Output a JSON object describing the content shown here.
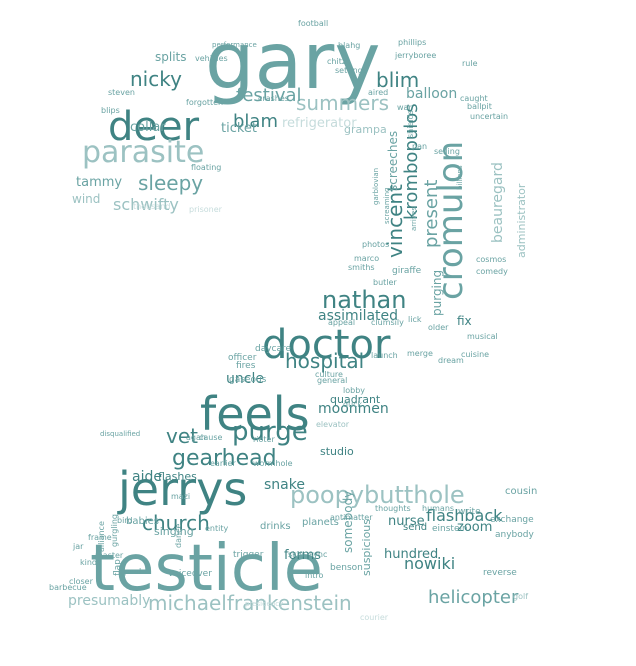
{
  "palette": {
    "dark": "#3f8383",
    "mid": "#6aa3a3",
    "light": "#9cc2c2",
    "faint": "#c6dcdc"
  },
  "words": [
    {
      "text": "gary",
      "color": "mid"
    },
    {
      "text": "testicle",
      "color": "mid"
    },
    {
      "text": "feels",
      "color": "dark"
    },
    {
      "text": "jerrys",
      "color": "dark"
    },
    {
      "text": "doctor",
      "color": "dark"
    },
    {
      "text": "deer",
      "color": "dark"
    },
    {
      "text": "cromulon",
      "color": "mid"
    },
    {
      "text": "parasite",
      "color": "light"
    },
    {
      "text": "poopybutthole",
      "color": "light"
    },
    {
      "text": "nathan",
      "color": "dark"
    },
    {
      "text": "michaelfrankenstein",
      "color": "light"
    },
    {
      "text": "purge",
      "color": "dark"
    },
    {
      "text": "gearhead",
      "color": "dark"
    },
    {
      "text": "hospital",
      "color": "dark"
    },
    {
      "text": "sleepy",
      "color": "mid"
    },
    {
      "text": "nicky",
      "color": "dark"
    },
    {
      "text": "summers",
      "color": "light"
    },
    {
      "text": "festival",
      "color": "mid"
    },
    {
      "text": "blim",
      "color": "dark"
    },
    {
      "text": "blam",
      "color": "dark"
    },
    {
      "text": "krombopulos",
      "color": "dark"
    },
    {
      "text": "vincent",
      "color": "dark"
    },
    {
      "text": "present",
      "color": "mid"
    },
    {
      "text": "beauregard",
      "color": "light"
    },
    {
      "text": "church",
      "color": "dark"
    },
    {
      "text": "vet",
      "color": "dark"
    },
    {
      "text": "schwifty",
      "color": "light"
    },
    {
      "text": "helicopter",
      "color": "mid"
    },
    {
      "text": "flashback",
      "color": "dark"
    },
    {
      "text": "nowiki",
      "color": "dark"
    },
    {
      "text": "presumably",
      "color": "light"
    },
    {
      "text": "moonmen",
      "color": "dark"
    },
    {
      "text": "refrigerator",
      "color": "faint"
    },
    {
      "text": "balloon",
      "color": "mid"
    },
    {
      "text": "ticket",
      "color": "mid"
    },
    {
      "text": "splits",
      "color": "mid"
    },
    {
      "text": "collar",
      "color": "mid"
    },
    {
      "text": "tammy",
      "color": "mid"
    },
    {
      "text": "wind",
      "color": "light"
    },
    {
      "text": "uncle",
      "color": "dark"
    },
    {
      "text": "snake",
      "color": "dark"
    },
    {
      "text": "aide",
      "color": "dark"
    },
    {
      "text": "assimilated",
      "color": "dark"
    },
    {
      "text": "purging",
      "color": "mid"
    },
    {
      "text": "administrator",
      "color": "light"
    },
    {
      "text": "screeches",
      "color": "mid"
    },
    {
      "text": "grampa",
      "color": "light"
    },
    {
      "text": "fix",
      "color": "dark"
    },
    {
      "text": "zoom",
      "color": "dark"
    },
    {
      "text": "nurse",
      "color": "dark"
    },
    {
      "text": "hundred",
      "color": "dark"
    },
    {
      "text": "forms",
      "color": "dark"
    },
    {
      "text": "somebody",
      "color": "mid"
    },
    {
      "text": "suspicious",
      "color": "mid"
    },
    {
      "text": "flashes",
      "color": "dark"
    },
    {
      "text": "quadrant",
      "color": "dark"
    },
    {
      "text": "studio",
      "color": "dark"
    },
    {
      "text": "singing",
      "color": "mid"
    },
    {
      "text": "babies",
      "color": "mid"
    },
    {
      "text": "planets",
      "color": "mid"
    },
    {
      "text": "drinks",
      "color": "mid"
    },
    {
      "text": "cousin",
      "color": "mid"
    },
    {
      "text": "exchange",
      "color": "mid"
    },
    {
      "text": "anybody",
      "color": "mid"
    },
    {
      "text": "reverse",
      "color": "mid"
    },
    {
      "text": "golf",
      "color": "light"
    },
    {
      "text": "courier",
      "color": "faint"
    },
    {
      "text": "barbecue",
      "color": "mid"
    },
    {
      "text": "closer",
      "color": "mid"
    },
    {
      "text": "jar",
      "color": "mid"
    },
    {
      "text": "kinda",
      "color": "mid"
    },
    {
      "text": "master",
      "color": "mid"
    },
    {
      "text": "frame",
      "color": "mid"
    },
    {
      "text": "bird",
      "color": "mid"
    },
    {
      "text": "flap",
      "color": "mid"
    },
    {
      "text": "paul",
      "color": "mid"
    },
    {
      "text": "trigger",
      "color": "mid"
    },
    {
      "text": "voiceover",
      "color": "mid"
    },
    {
      "text": "intro",
      "color": "mid"
    },
    {
      "text": "benson",
      "color": "mid"
    },
    {
      "text": "sync",
      "color": "mid"
    },
    {
      "text": "skin",
      "color": "mid"
    },
    {
      "text": "send",
      "color": "dark"
    },
    {
      "text": "einstein",
      "color": "mid"
    },
    {
      "text": "write",
      "color": "mid"
    },
    {
      "text": "thoughts",
      "color": "mid"
    },
    {
      "text": "humans",
      "color": "mid"
    },
    {
      "text": "antimatter",
      "color": "mid"
    },
    {
      "text": "entity",
      "color": "mid"
    },
    {
      "text": "daycare",
      "color": "mid"
    },
    {
      "text": "officer",
      "color": "mid"
    },
    {
      "text": "fires",
      "color": "mid"
    },
    {
      "text": "gaseous",
      "color": "mid"
    },
    {
      "text": "culture",
      "color": "mid"
    },
    {
      "text": "launch",
      "color": "mid"
    },
    {
      "text": "dream",
      "color": "mid"
    },
    {
      "text": "cuisine",
      "color": "mid"
    },
    {
      "text": "musical",
      "color": "mid"
    },
    {
      "text": "older",
      "color": "mid"
    },
    {
      "text": "merge",
      "color": "mid"
    },
    {
      "text": "lobby",
      "color": "mid"
    },
    {
      "text": "duck",
      "color": "mid"
    },
    {
      "text": "general",
      "color": "mid"
    },
    {
      "text": "agah",
      "color": "mid"
    },
    {
      "text": "cause",
      "color": "mid"
    },
    {
      "text": "rioter",
      "color": "mid"
    },
    {
      "text": "earlier",
      "color": "mid"
    },
    {
      "text": "wormhole",
      "color": "mid"
    },
    {
      "text": "elevator",
      "color": "light"
    },
    {
      "text": "giraffe",
      "color": "mid"
    },
    {
      "text": "marco",
      "color": "mid"
    },
    {
      "text": "smiths",
      "color": "mid"
    },
    {
      "text": "butler",
      "color": "mid"
    },
    {
      "text": "photos",
      "color": "mid"
    },
    {
      "text": "cosmos",
      "color": "mid"
    },
    {
      "text": "comedy",
      "color": "mid"
    },
    {
      "text": "clumsily",
      "color": "mid"
    },
    {
      "text": "lick",
      "color": "mid"
    },
    {
      "text": "appeal",
      "color": "mid"
    },
    {
      "text": "arrives",
      "color": "mid"
    },
    {
      "text": "screaming",
      "color": "mid"
    },
    {
      "text": "garblovian",
      "color": "mid"
    },
    {
      "text": "shields",
      "color": "mid"
    },
    {
      "text": "billions",
      "color": "mid"
    },
    {
      "text": "selling",
      "color": "mid"
    },
    {
      "text": "pan",
      "color": "mid"
    },
    {
      "text": "uncertain",
      "color": "mid"
    },
    {
      "text": "caught",
      "color": "mid"
    },
    {
      "text": "ballpit",
      "color": "mid"
    },
    {
      "text": "war",
      "color": "mid"
    },
    {
      "text": "aired",
      "color": "mid"
    },
    {
      "text": "settings",
      "color": "mid"
    },
    {
      "text": "chitz",
      "color": "mid"
    },
    {
      "text": "blahg",
      "color": "mid"
    },
    {
      "text": "rule",
      "color": "mid"
    },
    {
      "text": "jerryboree",
      "color": "mid"
    },
    {
      "text": "phillips",
      "color": "mid"
    },
    {
      "text": "football",
      "color": "mid"
    },
    {
      "text": "crashes",
      "color": "mid"
    },
    {
      "text": "forgotten",
      "color": "mid"
    },
    {
      "text": "vehicles",
      "color": "mid"
    },
    {
      "text": "steven",
      "color": "mid"
    },
    {
      "text": "blips",
      "color": "mid"
    },
    {
      "text": "floating",
      "color": "mid"
    },
    {
      "text": "thousand",
      "color": "faint"
    },
    {
      "text": "prisoner",
      "color": "faint"
    },
    {
      "text": "disqualified",
      "color": "mid"
    },
    {
      "text": "dance",
      "color": "mid"
    },
    {
      "text": "gurgling",
      "color": "mid"
    },
    {
      "text": "alliance",
      "color": "mid"
    },
    {
      "text": "mazi",
      "color": "mid"
    },
    {
      "text": "presidency",
      "color": "faint"
    },
    {
      "text": "performance",
      "color": "mid"
    }
  ]
}
